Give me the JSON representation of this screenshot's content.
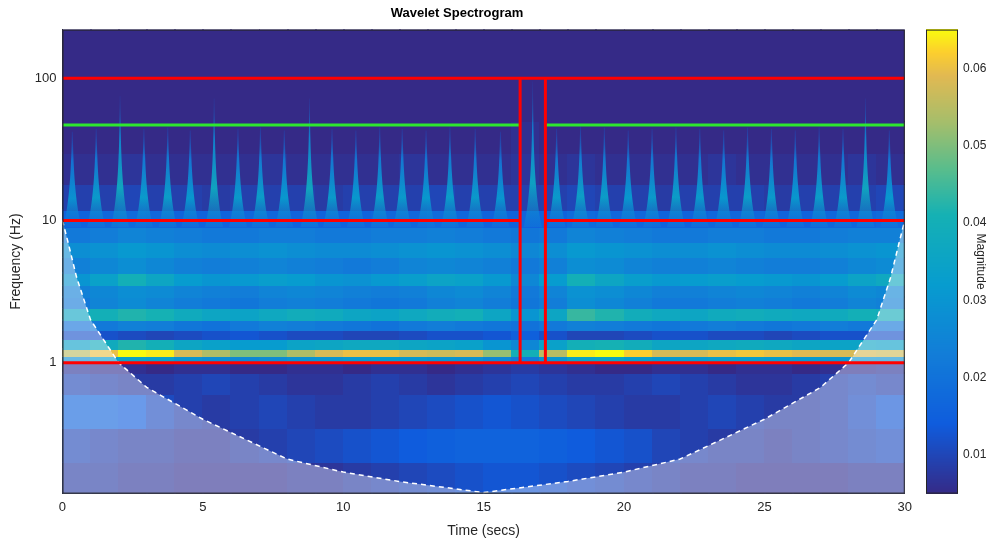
{
  "chart_data": {
    "type": "heatmap",
    "title": "Wavelet Spectrogram",
    "x_label": "Time (secs)",
    "y_label": "Frequency (Hz)",
    "colorbar_label": "Magnitude",
    "log": "y",
    "grid": false,
    "xlim": [
      0,
      30
    ],
    "xticks": [
      0,
      5,
      10,
      15,
      20,
      25,
      30
    ],
    "ylim": [
      0.12,
      220
    ],
    "yticks": [
      1,
      10,
      100
    ],
    "color_range": [
      0.005,
      0.065
    ],
    "color_ticks": [
      0.01,
      0.02,
      0.03,
      0.04,
      0.05,
      0.06
    ],
    "x_edges": [
      0,
      1,
      2,
      3,
      4,
      5,
      6,
      7,
      8,
      9,
      10,
      11,
      12,
      13,
      14,
      15,
      16,
      17,
      18,
      19,
      20,
      21,
      22,
      23,
      24,
      25,
      26,
      27,
      28,
      29,
      30
    ],
    "y_edges": [
      0.12,
      0.2,
      0.35,
      0.6,
      0.85,
      1.0,
      1.1,
      1.25,
      1.45,
      1.7,
      2.0,
      2.4,
      2.9,
      3.5,
      4.3,
      5.5,
      7,
      9,
      12,
      18,
      30,
      50,
      100,
      220
    ],
    "cells": [
      [
        0.008,
        0.008,
        0.007,
        0.007,
        0.006,
        0.006,
        0.006,
        0.006,
        0.007,
        0.007,
        0.008,
        0.009,
        0.01,
        0.011,
        0.012,
        0.013,
        0.013,
        0.012,
        0.011,
        0.01,
        0.009,
        0.008,
        0.007,
        0.007,
        0.006,
        0.006,
        0.006,
        0.006,
        0.007,
        0.007
      ],
      [
        0.01,
        0.009,
        0.008,
        0.008,
        0.007,
        0.007,
        0.008,
        0.009,
        0.01,
        0.011,
        0.012,
        0.013,
        0.014,
        0.015,
        0.016,
        0.016,
        0.016,
        0.015,
        0.014,
        0.013,
        0.012,
        0.01,
        0.009,
        0.008,
        0.008,
        0.007,
        0.008,
        0.009,
        0.01,
        0.011
      ],
      [
        0.016,
        0.016,
        0.014,
        0.011,
        0.009,
        0.008,
        0.009,
        0.01,
        0.009,
        0.008,
        0.008,
        0.009,
        0.01,
        0.011,
        0.012,
        0.013,
        0.012,
        0.011,
        0.01,
        0.009,
        0.008,
        0.008,
        0.009,
        0.01,
        0.009,
        0.008,
        0.008,
        0.009,
        0.011,
        0.013
      ],
      [
        0.01,
        0.009,
        0.008,
        0.008,
        0.009,
        0.01,
        0.009,
        0.008,
        0.007,
        0.007,
        0.008,
        0.009,
        0.008,
        0.007,
        0.008,
        0.009,
        0.01,
        0.009,
        0.008,
        0.008,
        0.009,
        0.01,
        0.009,
        0.008,
        0.007,
        0.007,
        0.008,
        0.009,
        0.01,
        0.009
      ],
      [
        0.007,
        0.006,
        0.006,
        0.005,
        0.006,
        0.006,
        0.005,
        0.005,
        0.006,
        0.006,
        0.005,
        0.006,
        0.006,
        0.005,
        0.006,
        0.007,
        0.008,
        0.007,
        0.006,
        0.005,
        0.005,
        0.006,
        0.006,
        0.005,
        0.006,
        0.006,
        0.005,
        0.006,
        0.006,
        0.007
      ],
      [
        0.028,
        0.032,
        0.035,
        0.034,
        0.03,
        0.028,
        0.026,
        0.027,
        0.029,
        0.03,
        0.031,
        0.032,
        0.031,
        0.03,
        0.029,
        0.026,
        0.022,
        0.03,
        0.035,
        0.036,
        0.033,
        0.031,
        0.032,
        0.033,
        0.033,
        0.032,
        0.031,
        0.03,
        0.03,
        0.029
      ],
      [
        0.055,
        0.06,
        0.066,
        0.064,
        0.058,
        0.054,
        0.05,
        0.05,
        0.054,
        0.058,
        0.06,
        0.06,
        0.058,
        0.057,
        0.058,
        0.052,
        0.04,
        0.055,
        0.064,
        0.065,
        0.062,
        0.058,
        0.058,
        0.06,
        0.061,
        0.06,
        0.059,
        0.058,
        0.058,
        0.057
      ],
      [
        0.034,
        0.038,
        0.042,
        0.04,
        0.036,
        0.034,
        0.032,
        0.032,
        0.035,
        0.036,
        0.037,
        0.037,
        0.036,
        0.035,
        0.034,
        0.03,
        0.026,
        0.034,
        0.04,
        0.041,
        0.039,
        0.036,
        0.036,
        0.037,
        0.038,
        0.037,
        0.036,
        0.035,
        0.035,
        0.034
      ],
      [
        0.012,
        0.012,
        0.011,
        0.01,
        0.011,
        0.012,
        0.013,
        0.012,
        0.011,
        0.011,
        0.01,
        0.01,
        0.011,
        0.012,
        0.012,
        0.013,
        0.015,
        0.012,
        0.01,
        0.01,
        0.011,
        0.012,
        0.012,
        0.011,
        0.011,
        0.01,
        0.011,
        0.012,
        0.012,
        0.012
      ],
      [
        0.02,
        0.022,
        0.024,
        0.023,
        0.021,
        0.02,
        0.022,
        0.024,
        0.023,
        0.022,
        0.021,
        0.02,
        0.022,
        0.023,
        0.022,
        0.021,
        0.02,
        0.022,
        0.024,
        0.023,
        0.022,
        0.021,
        0.022,
        0.023,
        0.022,
        0.021,
        0.022,
        0.023,
        0.022,
        0.021
      ],
      [
        0.036,
        0.04,
        0.042,
        0.041,
        0.038,
        0.036,
        0.035,
        0.037,
        0.039,
        0.038,
        0.036,
        0.035,
        0.037,
        0.039,
        0.04,
        0.036,
        0.03,
        0.036,
        0.044,
        0.042,
        0.039,
        0.037,
        0.036,
        0.038,
        0.039,
        0.038,
        0.037,
        0.038,
        0.04,
        0.039
      ],
      [
        0.022,
        0.025,
        0.027,
        0.025,
        0.023,
        0.022,
        0.021,
        0.023,
        0.024,
        0.023,
        0.022,
        0.021,
        0.022,
        0.024,
        0.025,
        0.023,
        0.021,
        0.023,
        0.028,
        0.026,
        0.024,
        0.022,
        0.022,
        0.023,
        0.024,
        0.023,
        0.022,
        0.023,
        0.025,
        0.024
      ],
      [
        0.024,
        0.026,
        0.028,
        0.027,
        0.025,
        0.024,
        0.023,
        0.025,
        0.026,
        0.025,
        0.024,
        0.023,
        0.024,
        0.026,
        0.027,
        0.025,
        0.022,
        0.025,
        0.029,
        0.028,
        0.026,
        0.024,
        0.024,
        0.025,
        0.026,
        0.025,
        0.024,
        0.025,
        0.027,
        0.026
      ],
      [
        0.03,
        0.034,
        0.04,
        0.036,
        0.032,
        0.03,
        0.031,
        0.033,
        0.032,
        0.03,
        0.029,
        0.031,
        0.033,
        0.035,
        0.034,
        0.031,
        0.026,
        0.032,
        0.04,
        0.036,
        0.033,
        0.031,
        0.032,
        0.033,
        0.032,
        0.031,
        0.03,
        0.032,
        0.035,
        0.037
      ],
      [
        0.024,
        0.026,
        0.028,
        0.026,
        0.024,
        0.023,
        0.024,
        0.025,
        0.024,
        0.023,
        0.022,
        0.023,
        0.025,
        0.026,
        0.025,
        0.024,
        0.022,
        0.024,
        0.028,
        0.027,
        0.025,
        0.024,
        0.024,
        0.025,
        0.024,
        0.023,
        0.023,
        0.024,
        0.026,
        0.027
      ],
      [
        0.028,
        0.029,
        0.031,
        0.03,
        0.028,
        0.027,
        0.028,
        0.029,
        0.028,
        0.027,
        0.027,
        0.028,
        0.029,
        0.03,
        0.029,
        0.028,
        0.026,
        0.028,
        0.031,
        0.03,
        0.029,
        0.028,
        0.028,
        0.029,
        0.028,
        0.027,
        0.027,
        0.028,
        0.029,
        0.03
      ],
      [
        0.022,
        0.023,
        0.025,
        0.024,
        0.023,
        0.022,
        0.022,
        0.023,
        0.023,
        0.022,
        0.022,
        0.023,
        0.023,
        0.024,
        0.023,
        0.022,
        0.021,
        0.022,
        0.025,
        0.024,
        0.023,
        0.022,
        0.022,
        0.023,
        0.023,
        0.022,
        0.022,
        0.023,
        0.024,
        0.024
      ],
      [
        0.016,
        0.017,
        0.018,
        0.017,
        0.016,
        0.016,
        0.017,
        0.017,
        0.016,
        0.016,
        0.016,
        0.017,
        0.017,
        0.018,
        0.017,
        0.016,
        0.016,
        0.016,
        0.018,
        0.017,
        0.017,
        0.016,
        0.016,
        0.017,
        0.017,
        0.016,
        0.016,
        0.017,
        0.017,
        0.018
      ],
      [
        0.009,
        0.009,
        0.01,
        0.009,
        0.009,
        0.008,
        0.009,
        0.009,
        0.009,
        0.008,
        0.009,
        0.009,
        0.009,
        0.01,
        0.009,
        0.009,
        0.009,
        0.009,
        0.01,
        0.009,
        0.009,
        0.008,
        0.009,
        0.009,
        0.009,
        0.008,
        0.009,
        0.009,
        0.009,
        0.01
      ],
      [
        0.006,
        0.006,
        0.007,
        0.006,
        0.006,
        0.006,
        0.006,
        0.007,
        0.006,
        0.006,
        0.006,
        0.006,
        0.007,
        0.006,
        0.006,
        0.006,
        0.007,
        0.006,
        0.007,
        0.006,
        0.006,
        0.006,
        0.006,
        0.007,
        0.006,
        0.006,
        0.006,
        0.006,
        0.007,
        0.006
      ],
      [
        0.005,
        0.005,
        0.005,
        0.005,
        0.005,
        0.005,
        0.005,
        0.005,
        0.005,
        0.005,
        0.005,
        0.005,
        0.005,
        0.005,
        0.005,
        0.005,
        0.006,
        0.005,
        0.005,
        0.005,
        0.005,
        0.005,
        0.005,
        0.005,
        0.005,
        0.005,
        0.005,
        0.005,
        0.005,
        0.005
      ],
      [
        0.004,
        0.004,
        0.004,
        0.004,
        0.004,
        0.004,
        0.004,
        0.004,
        0.004,
        0.004,
        0.004,
        0.004,
        0.004,
        0.004,
        0.004,
        0.004,
        0.005,
        0.004,
        0.004,
        0.004,
        0.004,
        0.004,
        0.004,
        0.004,
        0.004,
        0.004,
        0.004,
        0.004,
        0.004,
        0.004
      ],
      [
        0.003,
        0.003,
        0.003,
        0.003,
        0.003,
        0.003,
        0.003,
        0.003,
        0.003,
        0.003,
        0.003,
        0.003,
        0.003,
        0.003,
        0.003,
        0.003,
        0.003,
        0.003,
        0.003,
        0.003,
        0.003,
        0.003,
        0.003,
        0.003,
        0.003,
        0.003,
        0.003,
        0.003,
        0.003,
        0.003
      ]
    ],
    "peaks": {
      "time": [
        0.35,
        1.2,
        2.05,
        2.9,
        3.75,
        4.55,
        5.4,
        6.25,
        7.05,
        7.9,
        8.8,
        9.6,
        10.45,
        11.3,
        12.1,
        12.95,
        13.8,
        14.7,
        15.6,
        16.75,
        17.6,
        18.45,
        19.3,
        20.15,
        21.0,
        21.85,
        22.7,
        23.55,
        24.4,
        25.25,
        26.1,
        26.95,
        27.8,
        28.6,
        29.45
      ],
      "top_hz": [
        42,
        44,
        75,
        44,
        45,
        43,
        72,
        44,
        45,
        43,
        72,
        44,
        43,
        45,
        44,
        43,
        45,
        44,
        42,
        95,
        44,
        46,
        45,
        43,
        44,
        45,
        44,
        43,
        45,
        44,
        43,
        45,
        44,
        72,
        43
      ],
      "magnitude": [
        0.03,
        0.033,
        0.038,
        0.033,
        0.034,
        0.032,
        0.037,
        0.033,
        0.034,
        0.032,
        0.038,
        0.033,
        0.032,
        0.034,
        0.033,
        0.032,
        0.034,
        0.033,
        0.031,
        0.036,
        0.033,
        0.035,
        0.034,
        0.032,
        0.033,
        0.034,
        0.033,
        0.032,
        0.034,
        0.033,
        0.032,
        0.034,
        0.033,
        0.037,
        0.032
      ]
    },
    "coi": {
      "color": "#ffffff",
      "line_style": "dashed",
      "x": [
        0,
        0.2,
        0.5,
        1,
        2,
        3,
        5,
        8,
        10,
        12,
        15,
        18,
        20,
        22,
        25,
        27,
        28,
        29,
        29.5,
        29.8,
        30
      ],
      "y": [
        10,
        7,
        4,
        2,
        1,
        0.67,
        0.4,
        0.21,
        0.17,
        0.146,
        0.122,
        0.146,
        0.17,
        0.21,
        0.4,
        0.67,
        1,
        2,
        4,
        7,
        10
      ]
    },
    "lines": [
      {
        "color": "#ff0000",
        "x": [
          0,
          30
        ],
        "y": [
          1,
          1
        ]
      },
      {
        "color": "#ff0000",
        "x": [
          0,
          30
        ],
        "y": [
          100,
          100
        ]
      },
      {
        "color": "#ff0000",
        "x": [
          0,
          16.3
        ],
        "y": [
          10,
          10
        ]
      },
      {
        "color": "#ff0000",
        "x": [
          17.2,
          30
        ],
        "y": [
          10,
          10
        ]
      },
      {
        "color": "#ff0000",
        "x": [
          16.3,
          16.3
        ],
        "y": [
          1,
          100
        ]
      },
      {
        "color": "#ff0000",
        "x": [
          17.2,
          17.2
        ],
        "y": [
          1,
          100
        ]
      },
      {
        "color": "#2ee82e",
        "x": [
          0,
          16.3
        ],
        "y": [
          47,
          47
        ]
      },
      {
        "color": "#2ee82e",
        "x": [
          17.2,
          30
        ],
        "y": [
          47,
          47
        ]
      }
    ]
  }
}
